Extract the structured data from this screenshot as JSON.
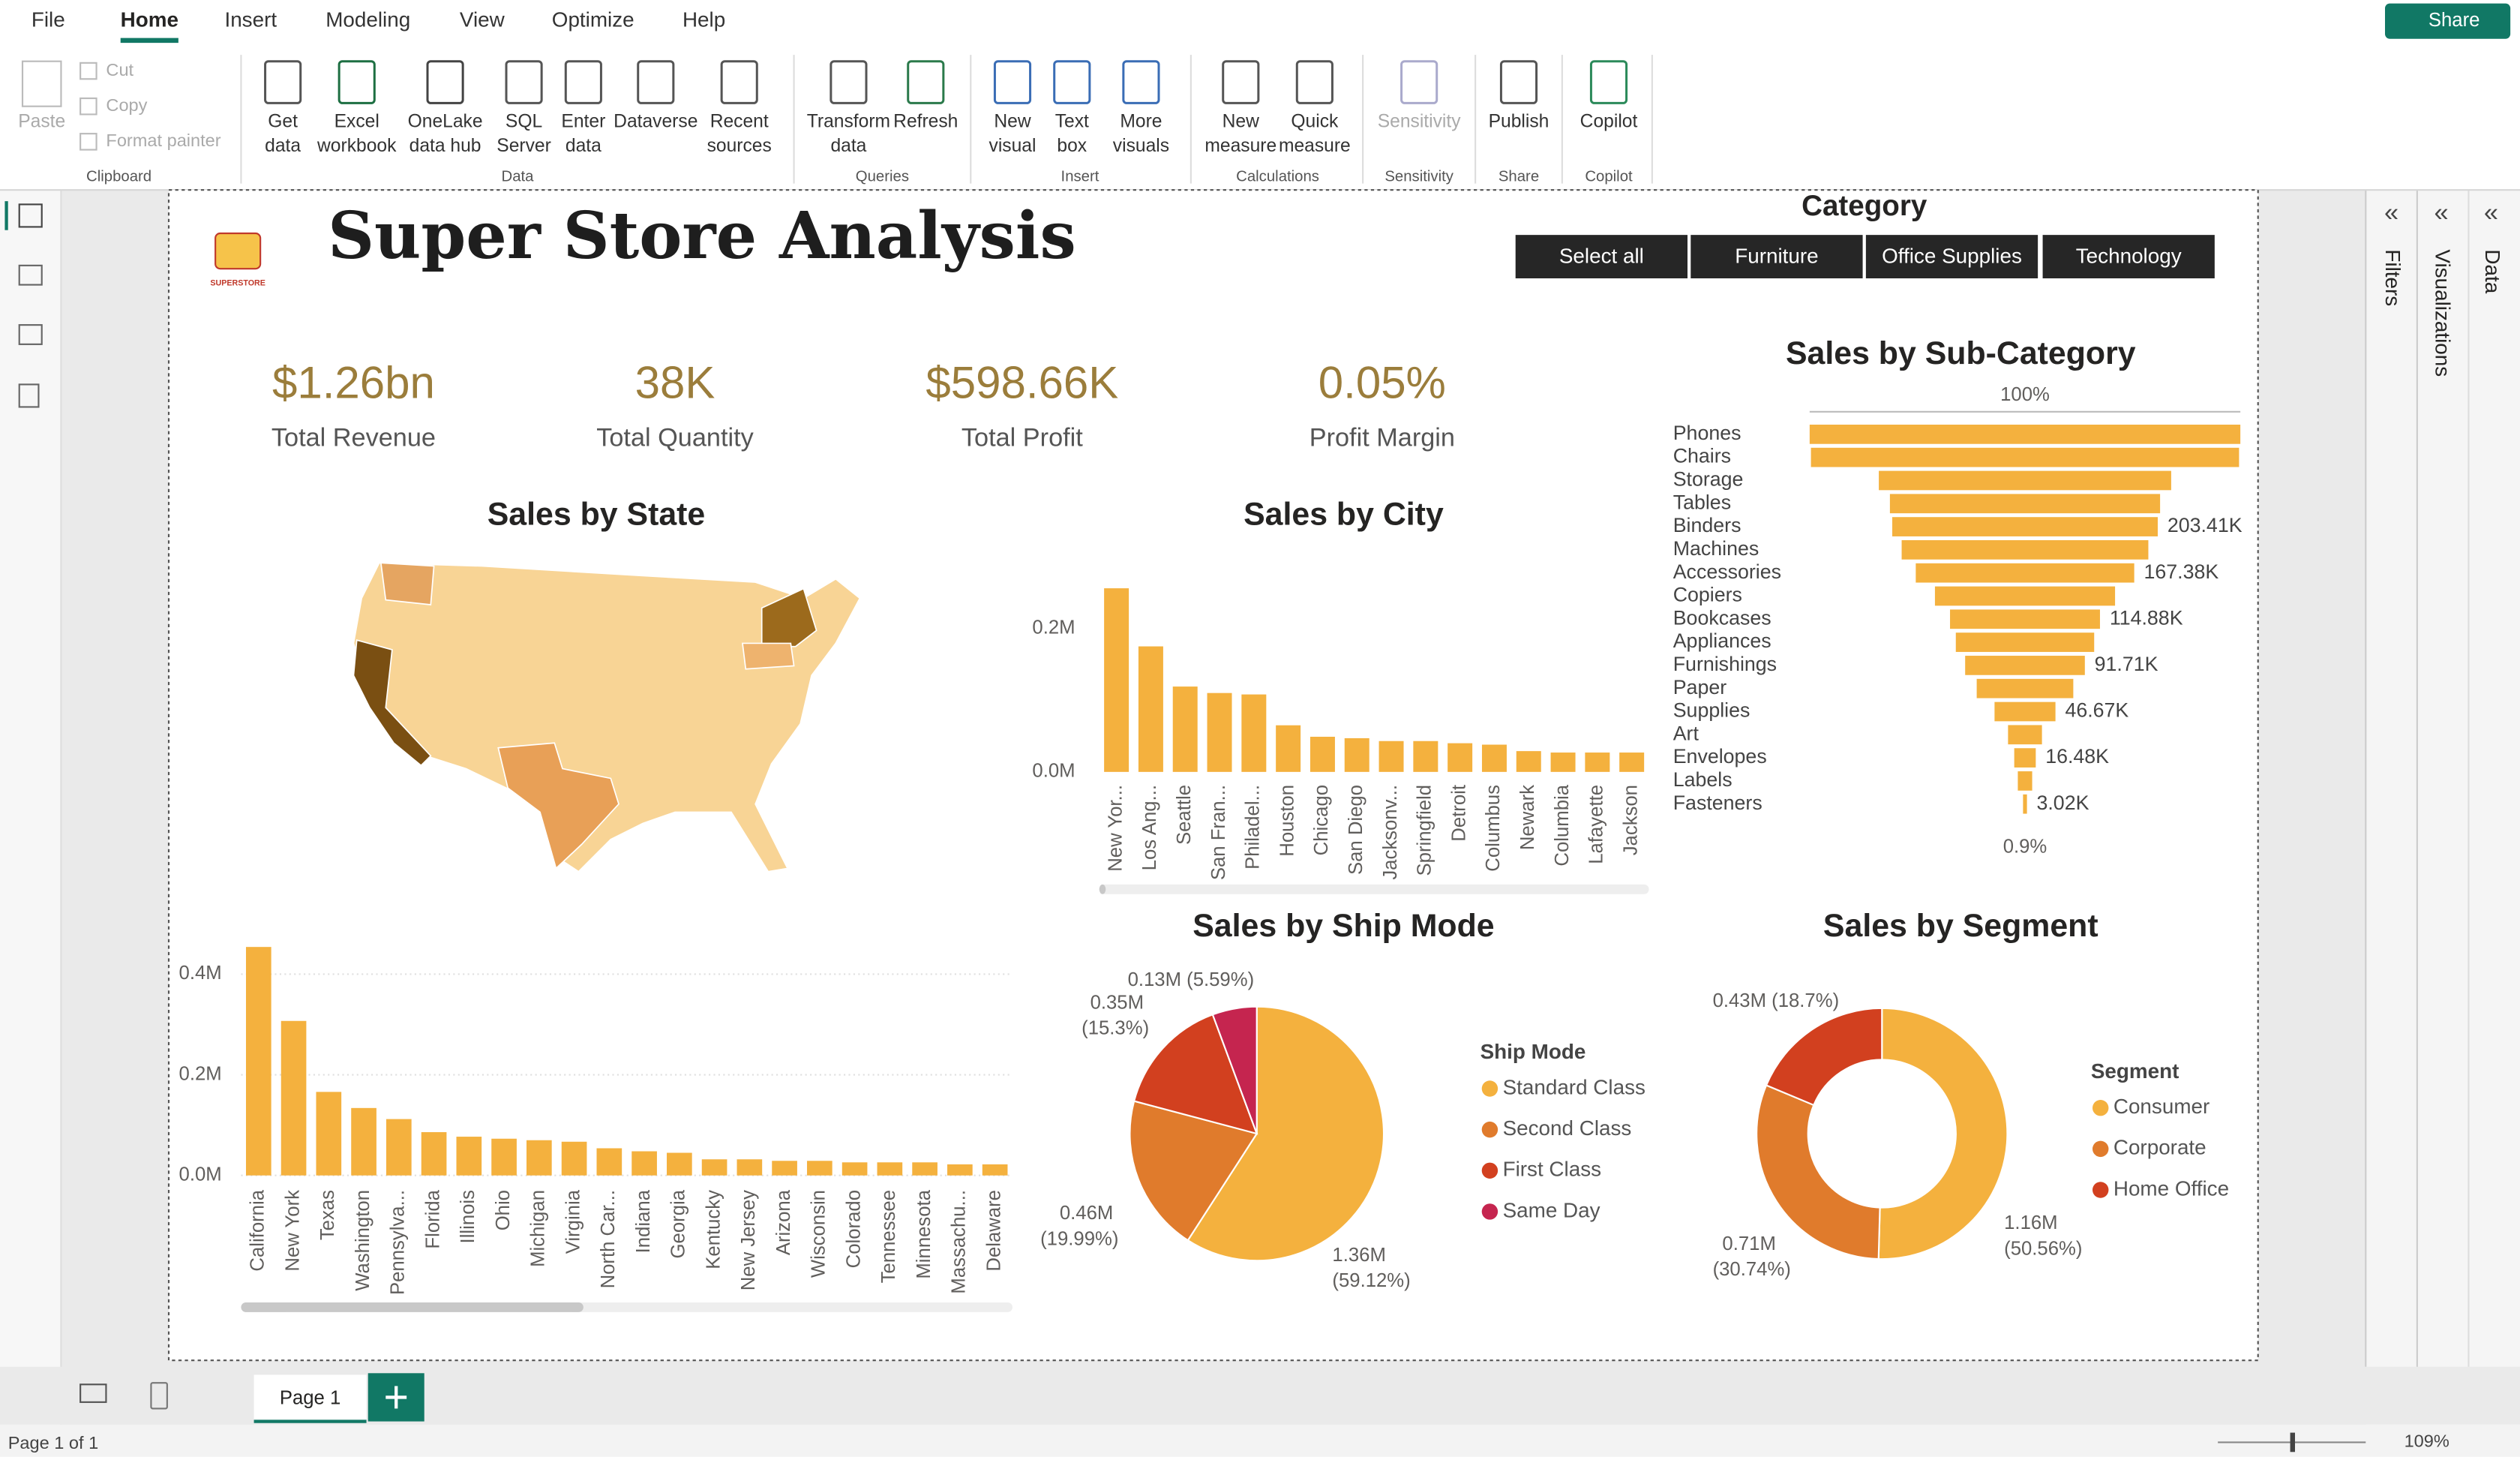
{
  "ribbon": {
    "tabs": [
      "File",
      "Home",
      "Insert",
      "Modeling",
      "View",
      "Optimize",
      "Help"
    ],
    "share": "Share",
    "groups": [
      {
        "name": "Clipboard",
        "buttons": [
          [
            "Paste"
          ],
          [
            "Cut"
          ],
          [
            "Copy"
          ],
          [
            "Format painter"
          ]
        ]
      },
      {
        "name": "Data",
        "buttons": [
          [
            "Get",
            "data"
          ],
          [
            "Excel",
            "workbook"
          ],
          [
            "OneLake",
            "data hub"
          ],
          [
            "SQL",
            "Server"
          ],
          [
            "Enter",
            "data"
          ],
          [
            "Dataverse"
          ],
          [
            "Recent",
            "sources"
          ]
        ]
      },
      {
        "name": "Queries",
        "buttons": [
          [
            "Transform",
            "data"
          ],
          [
            "Refresh"
          ]
        ]
      },
      {
        "name": "Insert",
        "buttons": [
          [
            "New",
            "visual"
          ],
          [
            "Text",
            "box"
          ],
          [
            "More",
            "visuals"
          ]
        ]
      },
      {
        "name": "Calculations",
        "buttons": [
          [
            "New",
            "measure"
          ],
          [
            "Quick",
            "measure"
          ]
        ]
      },
      {
        "name": "Sensitivity",
        "buttons": [
          [
            "Sensitivity"
          ]
        ]
      },
      {
        "name": "Share",
        "buttons": [
          [
            "Publish"
          ]
        ]
      },
      {
        "name": "Copilot",
        "buttons": [
          [
            "Copilot"
          ]
        ]
      }
    ]
  },
  "report": {
    "title": "Super Store Analysis",
    "logo_text": "SUPERSTORE",
    "slicer": {
      "title": "Category",
      "items": [
        "Select all",
        "Furniture",
        "Office Supplies",
        "Technology"
      ]
    },
    "kpis": [
      {
        "value": "$1.26bn",
        "label": "Total Revenue"
      },
      {
        "value": "38K",
        "label": "Total Quantity"
      },
      {
        "value": "$598.66K",
        "label": "Total Profit"
      },
      {
        "value": "0.05%",
        "label": "Profit Margin"
      }
    ]
  },
  "panes": [
    "Filters",
    "Visualizations",
    "Data"
  ],
  "footer": {
    "page_tab": "Page 1",
    "status": "Page 1 of 1",
    "zoom": "109%"
  },
  "chart_data": [
    {
      "type": "map",
      "title": "Sales by State"
    },
    {
      "type": "bar",
      "color": "#f4b13e",
      "categories": [
        "California",
        "New York",
        "Texas",
        "Washington",
        "Pennsylva...",
        "Florida",
        "Illinois",
        "Ohio",
        "Michigan",
        "Virginia",
        "North Car...",
        "Indiana",
        "Georgia",
        "Kentucky",
        "New Jersey",
        "Arizona",
        "Wisconsin",
        "Colorado",
        "Tennessee",
        "Minnesota",
        "Massachu...",
        "Delaware"
      ],
      "values": [
        0.454,
        0.307,
        0.166,
        0.134,
        0.112,
        0.086,
        0.077,
        0.073,
        0.07,
        0.067,
        0.054,
        0.048,
        0.045,
        0.032,
        0.032,
        0.029,
        0.029,
        0.026,
        0.026,
        0.026,
        0.022,
        0.022
      ],
      "ylim": [
        0,
        0.46
      ],
      "yticks": [
        {
          "value": 0,
          "label": "0.0M"
        },
        {
          "value": 0.2,
          "label": "0.2M"
        },
        {
          "value": 0.4,
          "label": "0.4M"
        }
      ],
      "grid": true
    },
    {
      "type": "bar",
      "title": "Sales by City",
      "color": "#f4b13e",
      "categories": [
        "New Yor...",
        "Los Ang...",
        "Seattle",
        "San Fran...",
        "Philadel...",
        "Houston",
        "Chicago",
        "San Diego",
        "Jacksonv...",
        "Springfield",
        "Detroit",
        "Columbus",
        "Newark",
        "Columbia",
        "Lafayette",
        "Jackson"
      ],
      "values": [
        0.256,
        0.175,
        0.119,
        0.11,
        0.108,
        0.065,
        0.049,
        0.047,
        0.043,
        0.043,
        0.04,
        0.038,
        0.029,
        0.027,
        0.027,
        0.027
      ],
      "ylim": [
        0,
        0.26
      ],
      "yticks": [
        {
          "value": 0,
          "label": "0.0M"
        },
        {
          "value": 0.2,
          "label": "0.2M"
        }
      ],
      "grid": false
    },
    {
      "type": "funnel",
      "title": "Sales by Sub-Category",
      "color": "#f4b13e",
      "top_label": "100%",
      "bottom_label": "0.9%",
      "categories": [
        "Phones",
        "Chairs",
        "Storage",
        "Tables",
        "Binders",
        "Machines",
        "Accessories",
        "Copiers",
        "Bookcases",
        "Appliances",
        "Furnishings",
        "Paper",
        "Supplies",
        "Art",
        "Envelopes",
        "Labels",
        "Fasteners"
      ],
      "values": [
        330,
        328,
        224,
        207,
        203.41,
        189,
        167.38,
        138,
        114.88,
        106,
        91.71,
        74,
        46.67,
        26,
        16.48,
        11,
        3.02
      ],
      "value_labels": [
        null,
        null,
        null,
        null,
        "203.41K",
        null,
        "167.38K",
        null,
        "114.88K",
        null,
        "91.71K",
        null,
        "46.67K",
        null,
        "16.48K",
        null,
        "3.02K"
      ]
    },
    {
      "type": "pie",
      "title": "Sales by Ship Mode",
      "legend_title": "Ship Mode",
      "categories": [
        "Standard Class",
        "Second Class",
        "First Class",
        "Same Day"
      ],
      "values": [
        1.36,
        0.46,
        0.35,
        0.13
      ],
      "value_labels": [
        "1.36M (59.12%)",
        "0.46M (19.99%)",
        "0.35M (15.3%)",
        "0.13M (5.59%)"
      ],
      "colors": [
        "#f4b13e",
        "#e07b2c",
        "#d2401f",
        "#c5254f"
      ]
    },
    {
      "type": "donut",
      "title": "Sales by Segment",
      "legend_title": "Segment",
      "categories": [
        "Consumer",
        "Corporate",
        "Home Office"
      ],
      "values": [
        1.16,
        0.71,
        0.43
      ],
      "value_labels": [
        "1.16M (50.56%)",
        "0.71M (30.74%)",
        "0.43M (18.7%)"
      ],
      "colors": [
        "#f4b13e",
        "#e07b2c",
        "#d2401f"
      ]
    }
  ]
}
